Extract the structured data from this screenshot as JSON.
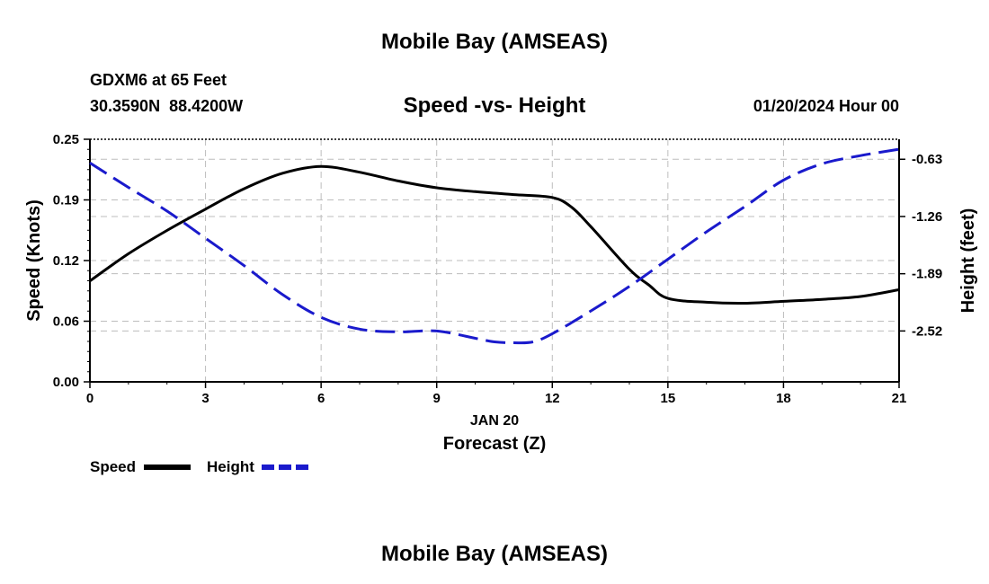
{
  "chart_data": {
    "type": "line",
    "title": "Mobile Bay (AMSEAS)",
    "footer_title": "Mobile Bay (AMSEAS)",
    "station_line": "GDXM6 at 65 Feet",
    "coords_line": "30.3590N  88.4200W",
    "subtitle": "Speed -vs- Height",
    "date_line": "01/20/2024 Hour 00",
    "xlabel": "Forecast (Z)",
    "xdate_label": "JAN 20",
    "ylabel_left": "Speed (Knots)",
    "ylabel_right": "Height (feet)",
    "xlim": [
      0,
      21
    ],
    "ylim_left": [
      0,
      0.25
    ],
    "ylim_right": [
      -3.08,
      -0.41
    ],
    "x_ticks": [
      0,
      3,
      6,
      9,
      12,
      15,
      18,
      21
    ],
    "x_tick_labels": [
      "0",
      "3",
      "6",
      "9",
      "12",
      "15",
      "18",
      "21"
    ],
    "y_left_ticks": [
      0,
      0.0625,
      0.125,
      0.1875,
      0.25
    ],
    "y_left_tick_labels": [
      "0.00",
      "0.06",
      "0.12",
      "0.19",
      "0.25"
    ],
    "y_right_ticks": [
      -0.63,
      -1.26,
      -1.89,
      -2.52
    ],
    "y_right_tick_labels": [
      "-0.63",
      "-1.26",
      "-1.89",
      "-2.52"
    ],
    "grid": true,
    "legend": [
      {
        "name": "Speed",
        "style": "solid"
      },
      {
        "name": "Height",
        "style": "dashed"
      }
    ],
    "series": [
      {
        "name": "Speed",
        "axis": "left",
        "color": "#000000",
        "dash": "solid",
        "x": [
          0,
          1,
          2,
          3,
          4,
          5,
          6,
          7,
          8,
          9,
          10,
          11,
          12,
          12.5,
          13,
          14,
          14.5,
          15,
          16,
          17,
          18,
          19,
          20,
          21
        ],
        "values": [
          0.104,
          0.132,
          0.156,
          0.178,
          0.199,
          0.215,
          0.222,
          0.216,
          0.207,
          0.2,
          0.196,
          0.193,
          0.19,
          0.18,
          0.16,
          0.116,
          0.1,
          0.086,
          0.082,
          0.081,
          0.083,
          0.085,
          0.088,
          0.095
        ]
      },
      {
        "name": "Height",
        "axis": "right",
        "color": "#1a1acc",
        "dash": "dashed",
        "x": [
          0,
          1,
          2,
          3,
          4,
          5,
          6,
          7,
          8,
          9,
          10,
          10.5,
          11,
          11.5,
          12,
          13,
          14,
          15,
          16,
          17,
          18,
          19,
          20,
          21
        ],
        "values": [
          -0.67,
          -0.94,
          -1.2,
          -1.5,
          -1.8,
          -2.12,
          -2.37,
          -2.5,
          -2.53,
          -2.52,
          -2.6,
          -2.64,
          -2.65,
          -2.64,
          -2.55,
          -2.3,
          -2.03,
          -1.73,
          -1.43,
          -1.15,
          -0.86,
          -0.68,
          -0.59,
          -0.52
        ]
      }
    ]
  }
}
